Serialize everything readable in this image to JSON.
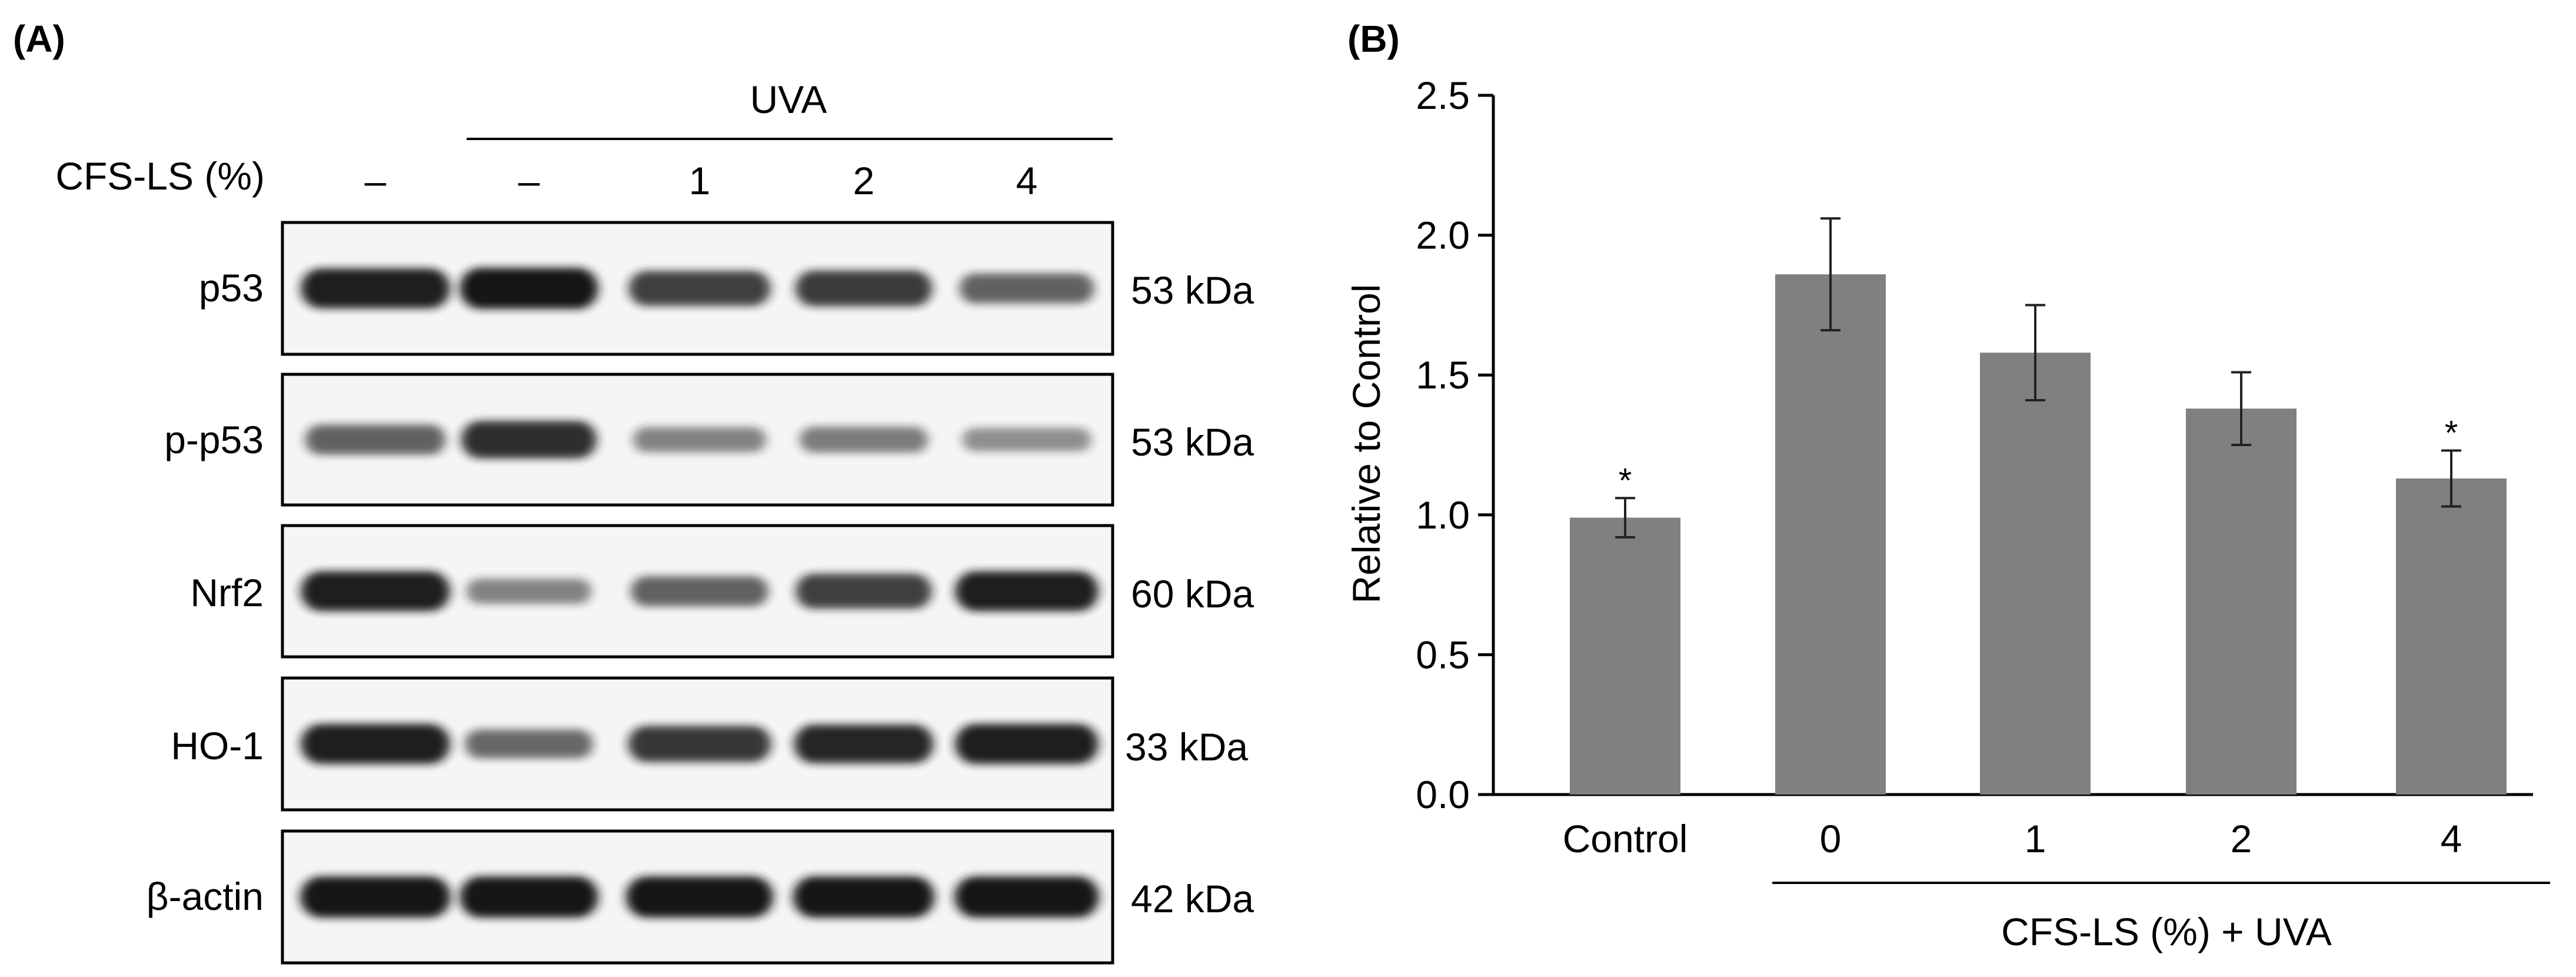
{
  "panel_a": {
    "label": "(A)",
    "group_label": "UVA",
    "treatment_label": "CFS-LS (%)",
    "lanes": [
      "–",
      "–",
      "1",
      "2",
      "4"
    ],
    "uva_lanes": [
      1,
      2,
      3,
      4
    ],
    "blots": [
      {
        "protein": "p53",
        "size": "53 kDa",
        "intensity": [
          0.95,
          1.0,
          0.75,
          0.78,
          0.55
        ]
      },
      {
        "protein": "p-p53",
        "size": "53 kDa",
        "intensity": [
          0.55,
          0.85,
          0.35,
          0.38,
          0.28
        ]
      },
      {
        "protein": "Nrf2",
        "size": "60 kDa",
        "intensity": [
          0.95,
          0.35,
          0.55,
          0.75,
          0.95
        ]
      },
      {
        "protein": "HO-1",
        "size": "33 kDa",
        "intensity": [
          0.95,
          0.5,
          0.8,
          0.9,
          0.95
        ]
      },
      {
        "protein": "β-actin",
        "size": "42 kDa",
        "intensity": [
          1.0,
          1.0,
          1.0,
          1.0,
          1.0
        ]
      }
    ],
    "band_color": "#141414",
    "frame_color": "#000000"
  },
  "chart_data": {
    "panel_label": "(B)",
    "type": "bar",
    "categories": [
      "Control",
      "0",
      "1",
      "2",
      "4"
    ],
    "values": [
      0.99,
      1.86,
      1.58,
      1.38,
      1.13
    ],
    "errors": [
      0.07,
      0.2,
      0.17,
      0.13,
      0.1
    ],
    "significance": [
      "*",
      "",
      "",
      "",
      "*"
    ],
    "ylabel": "Relative to Control",
    "xlabel": "CFS-LS (%) + UVA",
    "xlabel_group": [
      "0",
      "1",
      "2",
      "4"
    ],
    "ylim": [
      0,
      2.5
    ],
    "yticks": [
      "0.0",
      "0.5",
      "1.0",
      "1.5",
      "2.0",
      "2.5"
    ],
    "ytick_values": [
      0,
      0.5,
      1.0,
      1.5,
      2.0,
      2.5
    ],
    "grid": false,
    "bar_color": "#808080"
  }
}
